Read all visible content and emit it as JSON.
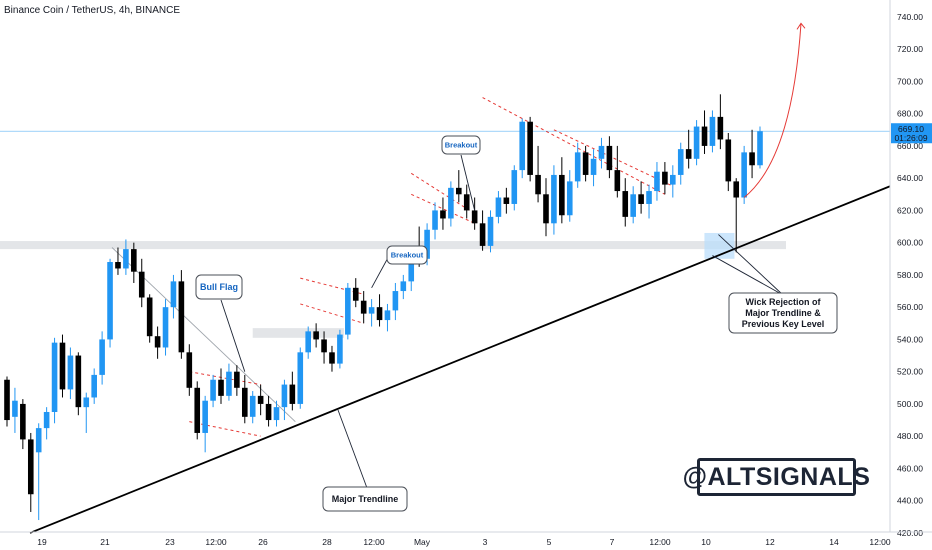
{
  "chart_data": {
    "type": "candlestick",
    "title": "Binance Coin / TetherUS, 4h, BINANCE",
    "ylim": [
      415,
      748
    ],
    "y_ticks": [
      420,
      440,
      460,
      480,
      500,
      520,
      540,
      560,
      580,
      600,
      620,
      640,
      660,
      680,
      700,
      720,
      740
    ],
    "x_labels": [
      "19",
      "21",
      "23",
      "12:00",
      "26",
      "28",
      "12:00",
      "May",
      "3",
      "5",
      "7",
      "12:00",
      "10",
      "12",
      "14",
      "12:00"
    ],
    "last_price": "669.10",
    "countdown": "01:26:09",
    "colors": {
      "up": "#2196f3",
      "down": "#000000",
      "trendline": "#000000",
      "channel": "#e53935",
      "projection": "#e53935",
      "zone": "#e3e5e8",
      "price_line": "#2196f3"
    },
    "candles": [
      [
        515,
        517,
        486,
        490
      ],
      [
        492,
        510,
        482,
        502
      ],
      [
        500,
        503,
        472,
        478
      ],
      [
        478,
        482,
        433,
        444
      ],
      [
        470,
        488,
        428,
        485
      ],
      [
        485,
        498,
        478,
        495
      ],
      [
        495,
        541,
        488,
        538
      ],
      [
        538,
        543,
        504,
        509
      ],
      [
        509,
        535,
        503,
        530
      ],
      [
        530,
        532,
        493,
        498
      ],
      [
        498,
        507,
        482,
        504
      ],
      [
        504,
        522,
        500,
        518
      ],
      [
        518,
        545,
        512,
        540
      ],
      [
        540,
        590,
        535,
        588
      ],
      [
        588,
        597,
        580,
        584
      ],
      [
        584,
        602,
        580,
        596
      ],
      [
        596,
        600,
        575,
        582
      ],
      [
        582,
        590,
        560,
        566
      ],
      [
        566,
        568,
        538,
        542
      ],
      [
        542,
        548,
        528,
        535
      ],
      [
        535,
        565,
        530,
        560
      ],
      [
        560,
        580,
        553,
        576
      ],
      [
        576,
        583,
        528,
        532
      ],
      [
        532,
        537,
        505,
        510
      ],
      [
        510,
        514,
        478,
        482
      ],
      [
        482,
        505,
        470,
        502
      ],
      [
        502,
        518,
        498,
        515
      ],
      [
        515,
        522,
        500,
        505
      ],
      [
        505,
        525,
        502,
        520
      ],
      [
        520,
        524,
        505,
        510
      ],
      [
        510,
        518,
        488,
        492
      ],
      [
        492,
        508,
        488,
        505
      ],
      [
        505,
        512,
        493,
        500
      ],
      [
        500,
        505,
        486,
        490
      ],
      [
        490,
        502,
        486,
        498
      ],
      [
        498,
        515,
        490,
        512
      ],
      [
        512,
        520,
        496,
        500
      ],
      [
        500,
        535,
        497,
        532
      ],
      [
        532,
        548,
        528,
        545
      ],
      [
        545,
        550,
        535,
        540
      ],
      [
        540,
        545,
        525,
        532
      ],
      [
        532,
        536,
        520,
        525
      ],
      [
        525,
        546,
        522,
        543
      ],
      [
        543,
        575,
        540,
        572
      ],
      [
        572,
        578,
        560,
        564
      ],
      [
        564,
        570,
        550,
        556
      ],
      [
        556,
        565,
        548,
        560
      ],
      [
        560,
        568,
        548,
        552
      ],
      [
        552,
        562,
        545,
        558
      ],
      [
        558,
        575,
        552,
        570
      ],
      [
        570,
        580,
        565,
        576
      ],
      [
        576,
        598,
        570,
        595
      ],
      [
        595,
        610,
        585,
        590
      ],
      [
        590,
        612,
        586,
        608
      ],
      [
        608,
        625,
        602,
        620
      ],
      [
        620,
        628,
        608,
        615
      ],
      [
        615,
        638,
        610,
        634
      ],
      [
        634,
        645,
        625,
        630
      ],
      [
        630,
        636,
        615,
        620
      ],
      [
        620,
        628,
        608,
        612
      ],
      [
        612,
        620,
        595,
        598
      ],
      [
        598,
        620,
        594,
        616
      ],
      [
        616,
        632,
        612,
        628
      ],
      [
        628,
        634,
        618,
        624
      ],
      [
        624,
        648,
        620,
        645
      ],
      [
        645,
        677,
        640,
        675
      ],
      [
        675,
        678,
        638,
        642
      ],
      [
        642,
        660,
        625,
        630
      ],
      [
        630,
        640,
        604,
        612
      ],
      [
        612,
        648,
        605,
        642
      ],
      [
        642,
        653,
        612,
        617
      ],
      [
        617,
        645,
        613,
        638
      ],
      [
        638,
        662,
        634,
        656
      ],
      [
        656,
        660,
        638,
        642
      ],
      [
        642,
        658,
        635,
        652
      ],
      [
        652,
        665,
        646,
        660
      ],
      [
        660,
        666,
        640,
        645
      ],
      [
        645,
        660,
        628,
        632
      ],
      [
        632,
        640,
        610,
        616
      ],
      [
        616,
        635,
        612,
        630
      ],
      [
        630,
        638,
        618,
        624
      ],
      [
        624,
        636,
        615,
        632
      ],
      [
        632,
        650,
        626,
        644
      ],
      [
        644,
        650,
        630,
        636
      ],
      [
        636,
        648,
        628,
        642
      ],
      [
        642,
        662,
        636,
        658
      ],
      [
        658,
        670,
        646,
        652
      ],
      [
        652,
        676,
        648,
        672
      ],
      [
        672,
        682,
        655,
        660
      ],
      [
        660,
        682,
        656,
        678
      ],
      [
        678,
        692,
        658,
        664
      ],
      [
        664,
        668,
        632,
        638
      ],
      [
        638,
        640,
        594,
        628
      ],
      [
        628,
        660,
        624,
        656
      ],
      [
        656,
        670,
        640,
        648
      ],
      [
        648,
        672,
        646,
        669
      ]
    ]
  },
  "annotations": {
    "bull_flag": "Bull Flag",
    "breakout_1": "Breakout",
    "breakout_2": "Breakout",
    "major_trendline": "Major Trendline",
    "wick_rejection_1": "Wick Rejection of",
    "wick_rejection_2": "Major Trendline &",
    "wick_rejection_3": "Previous Key Level"
  },
  "watermark": "@ALTSIGNALS"
}
